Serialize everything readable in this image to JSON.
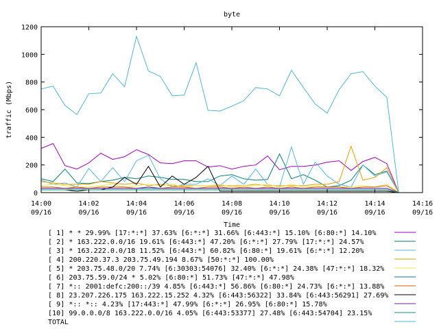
{
  "chart_data": {
    "type": "line",
    "title": "byte",
    "xlabel": "Time",
    "ylabel": "traffic (Mbps)",
    "ylim": [
      0,
      1200
    ],
    "yticks": [
      0,
      200,
      400,
      600,
      800,
      1000,
      1200
    ],
    "xlim": [
      "2024-09-16 14:00",
      "2024-09-16 14:16"
    ],
    "xticks": [
      {
        "time": "14:00",
        "date": "09/16"
      },
      {
        "time": "14:02",
        "date": "09/16"
      },
      {
        "time": "14:04",
        "date": "09/16"
      },
      {
        "time": "14:06",
        "date": "09/16"
      },
      {
        "time": "14:08",
        "date": "09/16"
      },
      {
        "time": "14:10",
        "date": "09/16"
      },
      {
        "time": "14:12",
        "date": "09/16"
      },
      {
        "time": "14:14",
        "date": "09/16"
      },
      {
        "time": "14:16",
        "date": "09/16"
      }
    ],
    "x": [
      "14:00:00",
      "14:00:30",
      "14:01:00",
      "14:01:30",
      "14:02:00",
      "14:02:30",
      "14:03:00",
      "14:03:30",
      "14:04:00",
      "14:04:30",
      "14:05:00",
      "14:05:30",
      "14:06:00",
      "14:06:30",
      "14:07:00",
      "14:07:30",
      "14:08:00",
      "14:08:30",
      "14:09:00",
      "14:09:30",
      "14:10:00",
      "14:10:30",
      "14:11:00",
      "14:11:30",
      "14:12:00",
      "14:12:30",
      "14:13:00",
      "14:13:30",
      "14:14:00",
      "14:14:30",
      "14:15:00"
    ],
    "series": [
      {
        "name": "[ 1] * * 29.99%  [17:*:*] 37.63% [6:*:*] 31.66% [6:443:*] 15.10% [6:80:*] 14.10%",
        "color": "#a000c0",
        "values": [
          320,
          355,
          195,
          170,
          215,
          285,
          240,
          260,
          310,
          275,
          215,
          210,
          230,
          230,
          185,
          195,
          170,
          190,
          200,
          265,
          165,
          190,
          190,
          200,
          220,
          230,
          160,
          225,
          255,
          210,
          0
        ]
      },
      {
        "name": "[ 2] * 163.222.0.0/16 19.61%  [6:443:*] 47.20% [6:*:*] 27.79% [17:*:*] 24.57%",
        "color": "#00806e",
        "values": [
          100,
          80,
          170,
          70,
          65,
          80,
          90,
          110,
          100,
          120,
          110,
          95,
          95,
          80,
          80,
          120,
          130,
          100,
          90,
          95,
          280,
          100,
          130,
          90,
          40,
          50,
          90,
          200,
          130,
          155,
          0
        ]
      },
      {
        "name": "[ 3] * 163.222.0.0/18 11.52%  [6:443:*] 60.82% [6:80:*] 19.61% [6:*:*] 12.20%",
        "color": "#56b4e9",
        "values": [
          90,
          60,
          70,
          40,
          175,
          80,
          180,
          80,
          230,
          270,
          100,
          40,
          60,
          60,
          100,
          50,
          120,
          60,
          170,
          60,
          40,
          330,
          60,
          220,
          120,
          60,
          40,
          200,
          120,
          150,
          0
        ]
      },
      {
        "name": "[ 4] 200.220.37.3 203.75.49.194 8.67%  [50:*:*] 100.00%",
        "color": "#e69f00",
        "values": [
          80,
          70,
          60,
          60,
          60,
          80,
          70,
          60,
          70,
          50,
          60,
          50,
          50,
          50,
          50,
          50,
          50,
          50,
          60,
          50,
          50,
          50,
          50,
          60,
          60,
          80,
          335,
          90,
          110,
          180,
          0
        ]
      },
      {
        "name": "[ 5] * 203.75.48.0/20 7.74%  [6:30303:54076] 32.40% [6:*:*] 24.38% [47:*:*] 18.32%",
        "color": "#f0e442",
        "values": [
          50,
          60,
          50,
          40,
          40,
          50,
          60,
          40,
          50,
          60,
          50,
          60,
          40,
          50,
          50,
          60,
          40,
          50,
          50,
          60,
          40,
          60,
          40,
          50,
          40,
          40,
          40,
          50,
          40,
          60,
          0
        ]
      },
      {
        "name": "[ 6] 203.75.59.0/24 * 5.02%  [6:80:*] 51.73% [47:*:*] 47.98%",
        "color": "#0072b2",
        "values": [
          30,
          30,
          30,
          30,
          30,
          30,
          30,
          30,
          30,
          30,
          30,
          30,
          30,
          30,
          30,
          30,
          30,
          30,
          30,
          30,
          30,
          30,
          30,
          30,
          30,
          30,
          30,
          30,
          30,
          30,
          0
        ]
      },
      {
        "name": "[ 7] *:: 2001:defc:200::/39 4.85%  [6:443:*] 56.86% [6:80:*] 24.73% [6:*:*] 13.88%",
        "color": "#d55e00",
        "values": [
          40,
          40,
          30,
          40,
          30,
          40,
          40,
          40,
          30,
          40,
          30,
          40,
          40,
          30,
          40,
          40,
          30,
          40,
          30,
          40,
          30,
          40,
          30,
          40,
          40,
          40,
          30,
          40,
          40,
          50,
          0
        ]
      },
      {
        "name": "[ 8] 23.207.226.175 163.222.15.252 4.32%  [6:443:56322] 33.84% [6:443:56291] 27.69%",
        "color": "#000000",
        "values": [
          20,
          20,
          20,
          10,
          20,
          20,
          40,
          110,
          60,
          190,
          40,
          120,
          60,
          110,
          190,
          10,
          10,
          10,
          10,
          10,
          10,
          10,
          10,
          10,
          10,
          10,
          10,
          10,
          10,
          10,
          0
        ]
      },
      {
        "name": "[ 9] *:: *:: 4.23%  [17:443:*] 47.99% [6:*:*] 26.95% [6:80:*] 15.78%",
        "color": "#7b1fa2",
        "values": [
          30,
          30,
          30,
          30,
          30,
          30,
          30,
          30,
          30,
          40,
          30,
          30,
          30,
          30,
          30,
          30,
          30,
          30,
          30,
          30,
          30,
          30,
          30,
          30,
          30,
          30,
          30,
          30,
          30,
          30,
          0
        ]
      },
      {
        "name": "[10] 99.0.0.0/8 163.222.0.0/16 4.05%  [6:443:53377] 27.48% [6:443:54704] 23.15%",
        "color": "#009e73",
        "values": [
          20,
          20,
          20,
          20,
          20,
          20,
          20,
          20,
          20,
          20,
          20,
          20,
          20,
          20,
          20,
          20,
          20,
          20,
          20,
          20,
          20,
          20,
          20,
          20,
          20,
          20,
          20,
          20,
          20,
          20,
          0
        ]
      },
      {
        "name": "TOTAL",
        "color": "#4fb6d6",
        "values": [
          750,
          770,
          630,
          565,
          715,
          720,
          860,
          765,
          1130,
          880,
          840,
          700,
          705,
          940,
          595,
          590,
          625,
          665,
          760,
          750,
          700,
          885,
          760,
          640,
          575,
          745,
          860,
          875,
          770,
          690,
          0
        ]
      }
    ]
  }
}
